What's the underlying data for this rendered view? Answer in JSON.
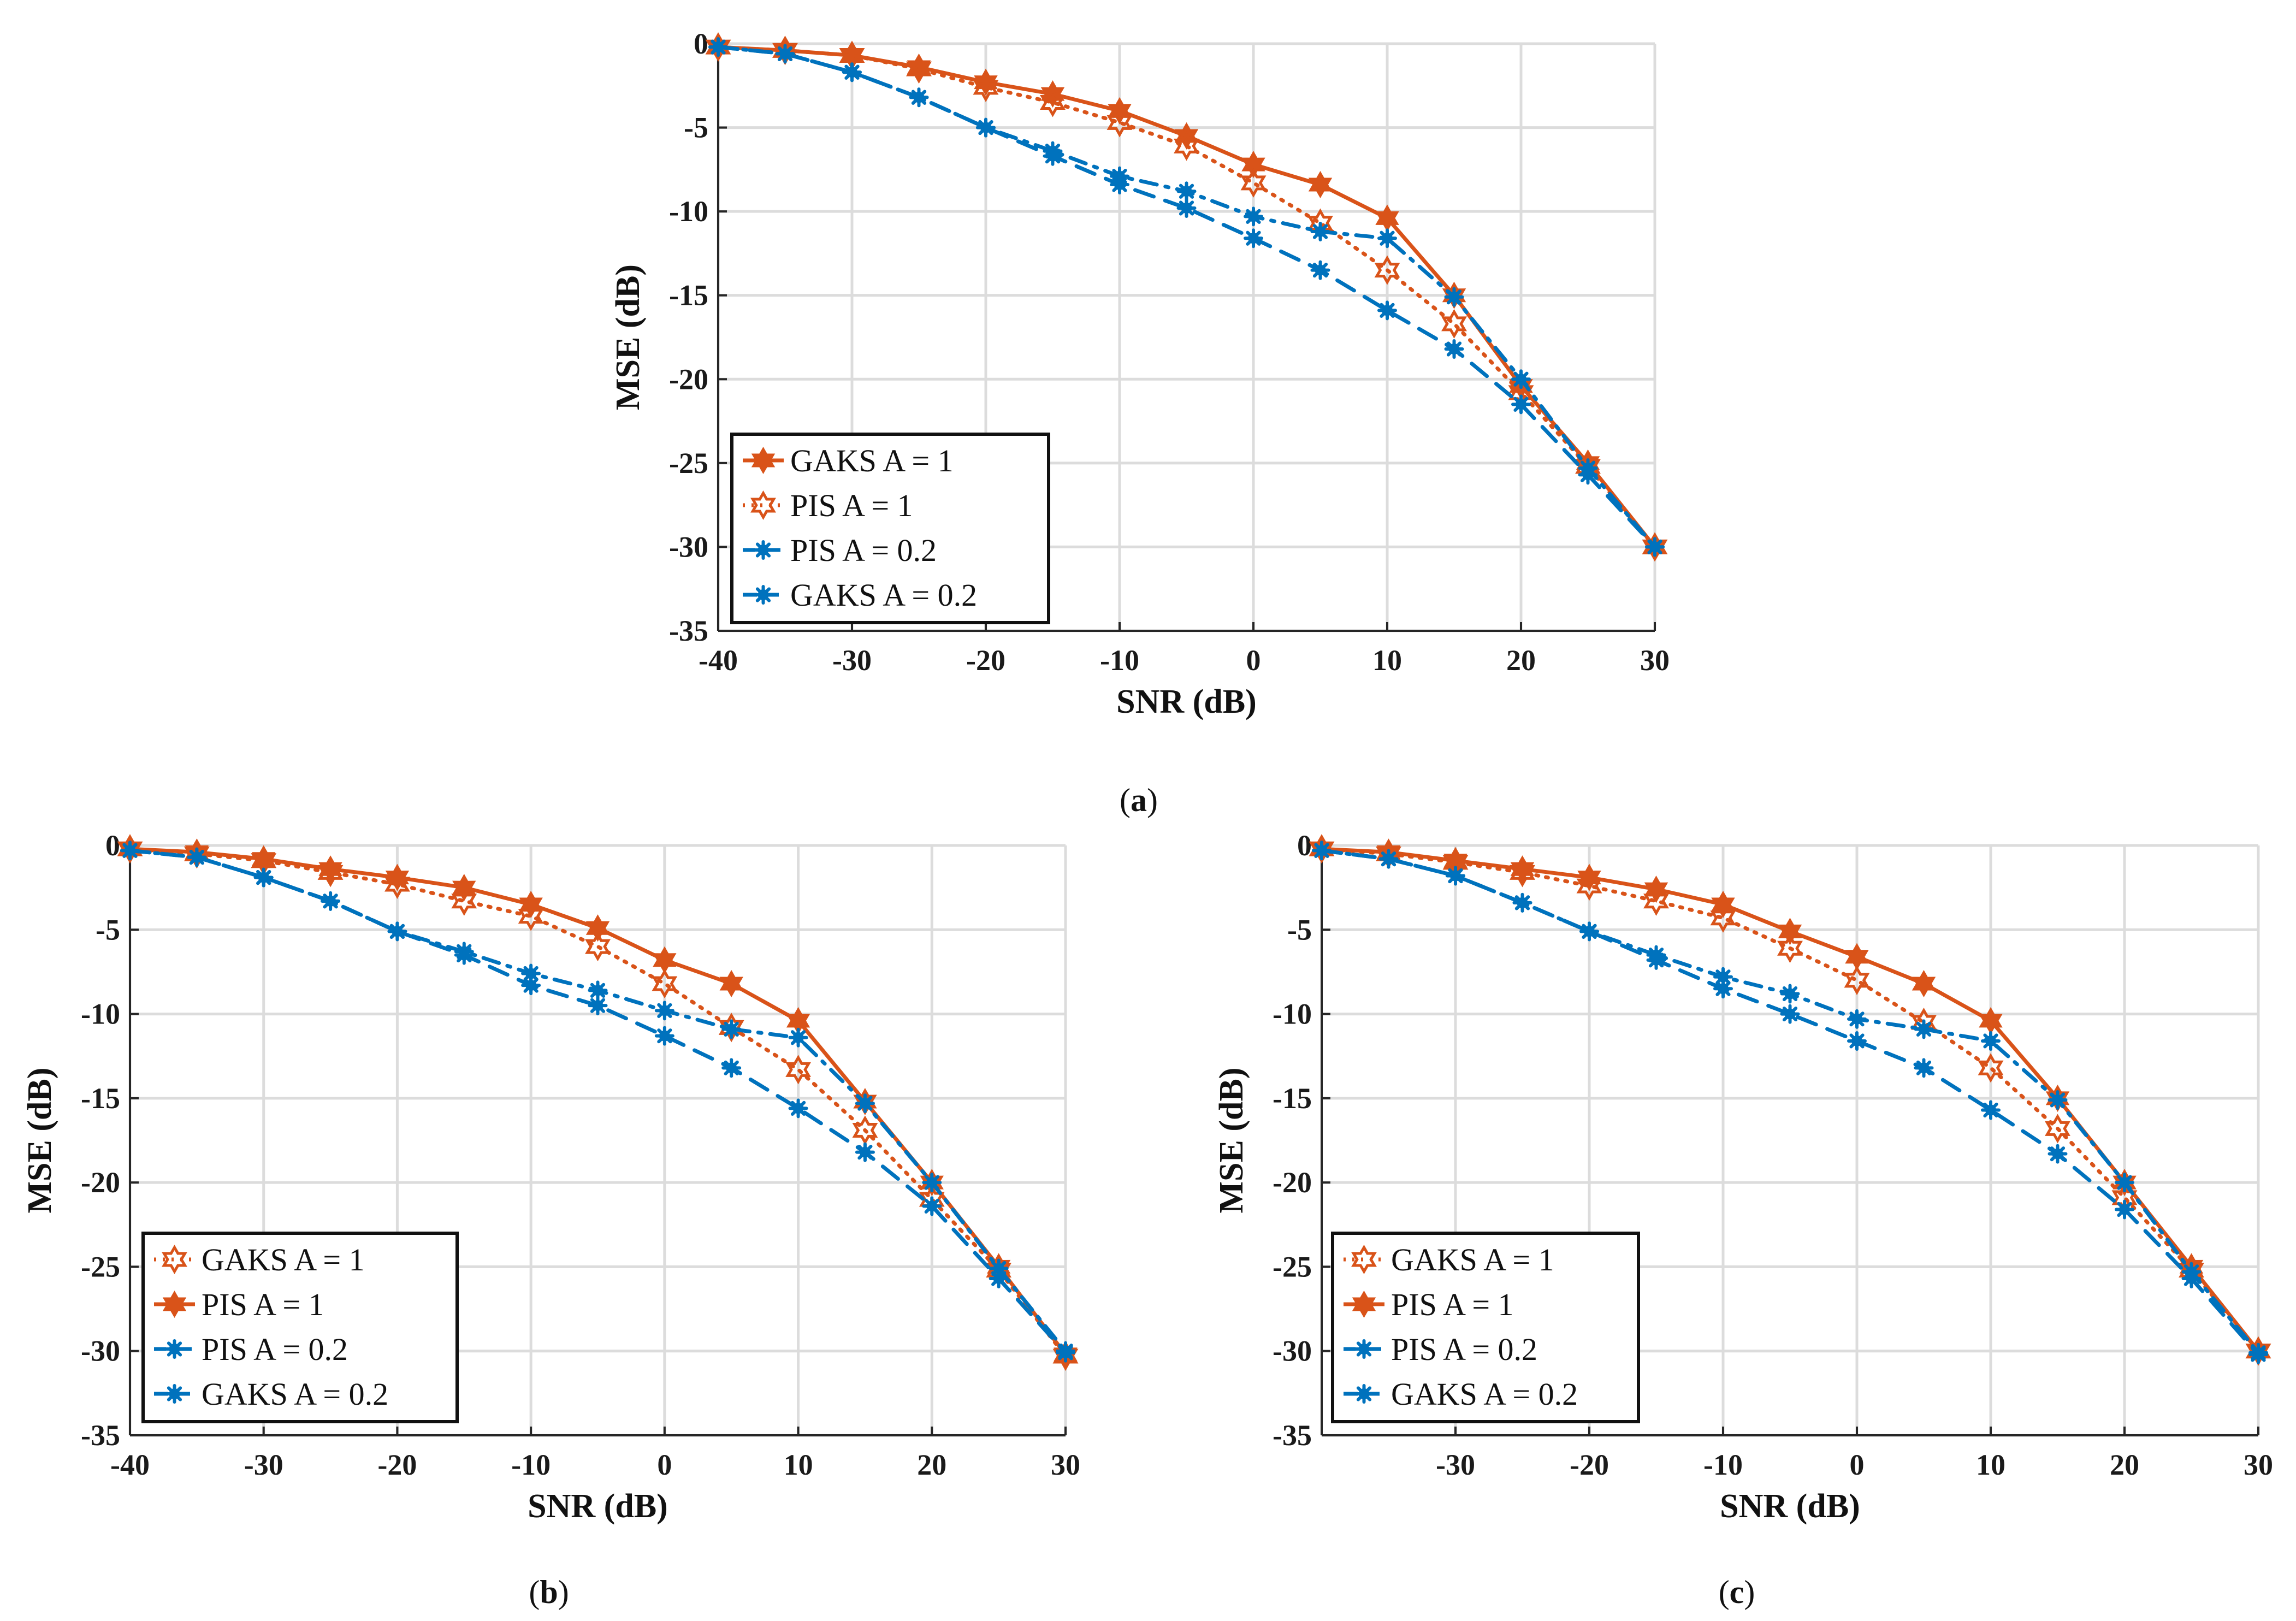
{
  "colors": {
    "orange": "#D95319",
    "blue": "#0072BD",
    "grid": "#DCDCDC",
    "axis": "#262626"
  },
  "chart_data": [
    {
      "type": "line",
      "panel": "a",
      "caption": "a",
      "xlabel": "SNR (dB)",
      "ylabel": "MSE (dB)",
      "xlim": [
        -40,
        30
      ],
      "ylim": [
        -35,
        0
      ],
      "xticks": [
        -40,
        -30,
        -20,
        -10,
        0,
        10,
        20,
        30
      ],
      "yticks": [
        0,
        -5,
        -10,
        -15,
        -20,
        -25,
        -30,
        -35
      ],
      "grid": true,
      "legend_position": "bottom-left",
      "x": [
        -40,
        -35,
        -30,
        -25,
        -20,
        -15,
        -10,
        -5,
        0,
        5,
        10,
        15,
        20,
        25,
        30
      ],
      "series": [
        {
          "name": "GAKS A = 1",
          "color": "#D95319",
          "style": "solid",
          "marker": "hexagram-filled",
          "values": [
            -0.2,
            -0.4,
            -0.7,
            -1.4,
            -2.3,
            -3.0,
            -4.0,
            -5.5,
            -7.2,
            -8.4,
            -10.4,
            -15.0,
            -20.4,
            -25.0,
            -30.0
          ]
        },
        {
          "name": "PIS A = 1",
          "color": "#D95319",
          "style": "dotted",
          "marker": "hexagram-open",
          "values": [
            -0.2,
            -0.4,
            -0.7,
            -1.5,
            -2.6,
            -3.5,
            -4.7,
            -6.1,
            -8.3,
            -10.7,
            -13.5,
            -16.7,
            -20.8,
            -25.2,
            -30.0
          ]
        },
        {
          "name": "PIS A = 0.2",
          "color": "#0072BD",
          "style": "dashdot",
          "marker": "asterisk",
          "values": [
            -0.2,
            -0.6,
            -1.7,
            -3.2,
            -5.0,
            -6.4,
            -7.9,
            -8.8,
            -10.3,
            -11.2,
            -11.6,
            -15.1,
            -20.0,
            -25.3,
            -30.0
          ]
        },
        {
          "name": "GAKS A = 0.2",
          "color": "#0072BD",
          "style": "dashed",
          "marker": "asterisk",
          "values": [
            -0.2,
            -0.6,
            -1.7,
            -3.2,
            -5.0,
            -6.7,
            -8.4,
            -9.8,
            -11.6,
            -13.5,
            -15.9,
            -18.2,
            -21.5,
            -25.7,
            -30.0
          ]
        }
      ]
    },
    {
      "type": "line",
      "panel": "b",
      "caption": "b",
      "xlabel": "SNR (dB)",
      "ylabel": "MSE (dB)",
      "xlim": [
        -40,
        30
      ],
      "ylim": [
        -35,
        0
      ],
      "xticks": [
        -40,
        -30,
        -20,
        -10,
        0,
        10,
        20,
        30
      ],
      "yticks": [
        0,
        -5,
        -10,
        -15,
        -20,
        -25,
        -30,
        -35
      ],
      "grid": true,
      "legend_position": "bottom-left",
      "x": [
        -40,
        -35,
        -30,
        -25,
        -20,
        -15,
        -10,
        -5,
        0,
        5,
        10,
        15,
        20,
        25,
        30
      ],
      "series": [
        {
          "name": "GAKS A = 1",
          "color": "#D95319",
          "style": "dotted",
          "marker": "hexagram-open",
          "values": [
            -0.2,
            -0.5,
            -0.9,
            -1.6,
            -2.3,
            -3.3,
            -4.2,
            -6.0,
            -8.2,
            -10.8,
            -13.3,
            -16.9,
            -21.0,
            -25.2,
            -30.3
          ]
        },
        {
          "name": "PIS A = 1",
          "color": "#D95319",
          "style": "solid",
          "marker": "hexagram-filled",
          "values": [
            -0.2,
            -0.4,
            -0.8,
            -1.4,
            -1.9,
            -2.5,
            -3.5,
            -4.9,
            -6.8,
            -8.2,
            -10.4,
            -15.2,
            -20.0,
            -25.0,
            -30.2
          ]
        },
        {
          "name": "PIS A = 0.2",
          "color": "#0072BD",
          "style": "dashdot",
          "marker": "asterisk",
          "values": [
            -0.3,
            -0.7,
            -1.9,
            -3.3,
            -5.1,
            -6.3,
            -7.6,
            -8.6,
            -9.8,
            -10.9,
            -11.4,
            -15.3,
            -20.0,
            -25.1,
            -30.0
          ]
        },
        {
          "name": "GAKS A = 0.2",
          "color": "#0072BD",
          "style": "dashed",
          "marker": "asterisk",
          "values": [
            -0.3,
            -0.7,
            -1.9,
            -3.3,
            -5.1,
            -6.5,
            -8.3,
            -9.5,
            -11.3,
            -13.2,
            -15.6,
            -18.2,
            -21.4,
            -25.7,
            -30.1
          ]
        }
      ]
    },
    {
      "type": "line",
      "panel": "c",
      "caption": "c",
      "xlabel": "SNR (dB)",
      "ylabel": "MSE (dB)",
      "xlim": [
        -40,
        30
      ],
      "ylim": [
        -35,
        0
      ],
      "xticks": [
        -30,
        -20,
        -10,
        0,
        10,
        20,
        30
      ],
      "yticks": [
        0,
        -5,
        -10,
        -15,
        -20,
        -25,
        -30,
        -35
      ],
      "grid": true,
      "legend_position": "bottom-left",
      "x": [
        -40,
        -35,
        -30,
        -25,
        -20,
        -15,
        -10,
        -5,
        0,
        5,
        10,
        15,
        20,
        25,
        30
      ],
      "series": [
        {
          "name": "GAKS A = 1",
          "color": "#D95319",
          "style": "dotted",
          "marker": "hexagram-open",
          "values": [
            -0.2,
            -0.5,
            -1.0,
            -1.6,
            -2.4,
            -3.3,
            -4.3,
            -6.1,
            -8.0,
            -10.5,
            -13.2,
            -16.8,
            -20.9,
            -25.2,
            -30.0
          ]
        },
        {
          "name": "PIS A = 1",
          "color": "#D95319",
          "style": "solid",
          "marker": "hexagram-filled",
          "values": [
            -0.2,
            -0.4,
            -0.9,
            -1.4,
            -1.9,
            -2.6,
            -3.5,
            -5.1,
            -6.6,
            -8.2,
            -10.4,
            -15.0,
            -20.0,
            -25.0,
            -30.0
          ]
        },
        {
          "name": "PIS A = 0.2",
          "color": "#0072BD",
          "style": "dashdot",
          "marker": "asterisk",
          "values": [
            -0.3,
            -0.8,
            -1.8,
            -3.4,
            -5.1,
            -6.5,
            -7.8,
            -8.8,
            -10.3,
            -10.9,
            -11.6,
            -15.1,
            -20.0,
            -25.3,
            -30.1
          ]
        },
        {
          "name": "GAKS A = 0.2",
          "color": "#0072BD",
          "style": "dashed",
          "marker": "asterisk",
          "values": [
            -0.3,
            -0.8,
            -1.8,
            -3.4,
            -5.1,
            -6.8,
            -8.5,
            -10.0,
            -11.6,
            -13.2,
            -15.7,
            -18.3,
            -21.6,
            -25.7,
            -30.2
          ]
        }
      ]
    }
  ]
}
